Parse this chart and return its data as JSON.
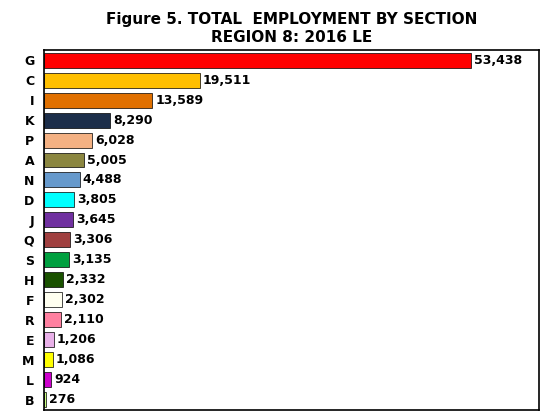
{
  "title_line1": "Figure 5. TOTAL  EMPLOYMENT BY SECTION",
  "title_line2": "REGION 8: 2016 LE",
  "categories": [
    "G",
    "C",
    "I",
    "K",
    "P",
    "A",
    "N",
    "D",
    "J",
    "Q",
    "S",
    "H",
    "F",
    "R",
    "E",
    "M",
    "L",
    "B"
  ],
  "values": [
    53438,
    19511,
    13589,
    8290,
    6028,
    5005,
    4488,
    3805,
    3645,
    3306,
    3135,
    2332,
    2302,
    2110,
    1206,
    1086,
    924,
    276
  ],
  "labels": [
    "53,438",
    "19,511",
    "13,589",
    "8,290",
    "6,028",
    "5,005",
    "4,488",
    "3,805",
    "3,645",
    "3,306",
    "3,135",
    "2,332",
    "2,302",
    "2,110",
    "1,206",
    "1,086",
    "924",
    "276"
  ],
  "colors": [
    "#ff0000",
    "#ffbf00",
    "#e07000",
    "#1c2e4a",
    "#f4b183",
    "#8b8640",
    "#6699cc",
    "#00ffff",
    "#7030a0",
    "#a04040",
    "#00a040",
    "#1a5200",
    "#fffff0",
    "#ff80a0",
    "#e8b0e8",
    "#ffff00",
    "#cc00cc",
    "#c8ff80"
  ],
  "background_color": "#ffffff",
  "border_color": "#000000",
  "title_fontsize": 11,
  "label_fontsize": 9,
  "tick_fontsize": 9,
  "xlim": 62000
}
